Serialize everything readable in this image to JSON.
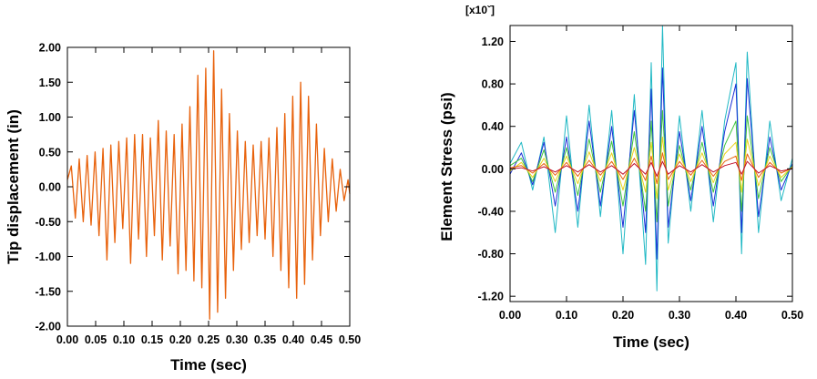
{
  "chart_data": [
    {
      "type": "line",
      "xlabel": "Time (sec)",
      "ylabel": "Tip displacement (in)",
      "xlim": [
        0,
        0.5
      ],
      "ylim": [
        -2.0,
        2.0
      ],
      "xticks": [
        0,
        0.05,
        0.1,
        0.15,
        0.2,
        0.25,
        0.3,
        0.35,
        0.4,
        0.45,
        0.5
      ],
      "xtick_labels": [
        "0.00",
        "0.05",
        "0.10",
        "0.15",
        "0.20",
        "0.25",
        "0.30",
        "0.35",
        "0.40",
        "0.45",
        "0.50"
      ],
      "yticks": [
        -2.0,
        -1.5,
        -1.0,
        -0.5,
        0.0,
        0.5,
        1.0,
        1.5,
        2.0
      ],
      "ytick_labels": [
        "-2.00",
        "-1.50",
        "-1.00",
        "-0.50",
        "0.00",
        "0.50",
        "1.00",
        "1.50",
        "2.00"
      ],
      "grid": false,
      "series": [
        {
          "color": "#e8620c",
          "x": [
            0.0,
            0.007,
            0.014,
            0.021,
            0.028,
            0.035,
            0.042,
            0.049,
            0.056,
            0.063,
            0.07,
            0.077,
            0.084,
            0.091,
            0.098,
            0.105,
            0.112,
            0.119,
            0.126,
            0.133,
            0.14,
            0.147,
            0.154,
            0.161,
            0.168,
            0.175,
            0.182,
            0.189,
            0.196,
            0.203,
            0.21,
            0.217,
            0.224,
            0.231,
            0.238,
            0.245,
            0.252,
            0.259,
            0.266,
            0.273,
            0.28,
            0.287,
            0.294,
            0.301,
            0.308,
            0.315,
            0.322,
            0.329,
            0.336,
            0.343,
            0.35,
            0.357,
            0.364,
            0.371,
            0.378,
            0.385,
            0.392,
            0.399,
            0.406,
            0.413,
            0.42,
            0.427,
            0.434,
            0.441,
            0.448,
            0.455,
            0.462,
            0.469,
            0.476,
            0.483,
            0.49,
            0.497,
            0.5
          ],
          "y": [
            0.1,
            0.3,
            -0.45,
            0.4,
            -0.5,
            0.45,
            -0.55,
            0.5,
            -0.7,
            0.55,
            -1.05,
            0.6,
            -0.8,
            0.65,
            -0.6,
            0.7,
            -1.1,
            0.75,
            -0.75,
            0.75,
            -1.0,
            0.7,
            -0.7,
            0.95,
            -1.05,
            0.8,
            -0.85,
            0.75,
            -1.25,
            0.9,
            -1.2,
            1.15,
            -1.35,
            1.6,
            -1.45,
            1.7,
            -1.9,
            1.95,
            -1.8,
            1.4,
            -1.6,
            1.05,
            -1.2,
            0.8,
            -0.9,
            0.65,
            -0.8,
            0.6,
            -0.7,
            0.65,
            -0.75,
            0.7,
            -1.0,
            0.85,
            -1.2,
            1.05,
            -1.45,
            1.3,
            -1.6,
            1.5,
            -1.4,
            1.3,
            -1.05,
            0.9,
            -0.7,
            0.55,
            -0.5,
            0.4,
            -0.35,
            0.25,
            -0.2,
            0.1,
            -0.1
          ]
        }
      ]
    },
    {
      "type": "line",
      "xlabel": "Time (sec)",
      "ylabel": "Element Stress (psi)",
      "scale_label": "[x10ˇ]",
      "xlim": [
        0,
        0.5
      ],
      "ylim": [
        -1.25,
        1.35
      ],
      "xticks": [
        0,
        0.1,
        0.2,
        0.3,
        0.4,
        0.5
      ],
      "xtick_labels": [
        "0.00",
        "0.10",
        "0.20",
        "0.30",
        "0.40",
        "0.50"
      ],
      "yticks": [
        -1.2,
        -0.8,
        -0.4,
        0.0,
        0.4,
        0.8,
        1.2
      ],
      "ytick_labels": [
        "-1.20",
        "-0.80",
        "-0.40",
        "0.00",
        "0.40",
        "0.80",
        "1.20"
      ],
      "grid": false,
      "series": [
        {
          "color": "#1fb8c4",
          "x": [
            0.0,
            0.02,
            0.04,
            0.06,
            0.08,
            0.1,
            0.12,
            0.14,
            0.16,
            0.18,
            0.2,
            0.22,
            0.24,
            0.25,
            0.26,
            0.27,
            0.28,
            0.3,
            0.32,
            0.34,
            0.36,
            0.38,
            0.4,
            0.41,
            0.42,
            0.44,
            0.46,
            0.48,
            0.5
          ],
          "y": [
            0.05,
            0.25,
            -0.2,
            0.3,
            -0.6,
            0.5,
            -0.55,
            0.6,
            -0.45,
            0.55,
            -0.8,
            0.7,
            -0.9,
            1.0,
            -1.15,
            1.35,
            -0.7,
            0.5,
            -0.4,
            0.55,
            -0.5,
            0.45,
            1.0,
            -0.8,
            1.1,
            -0.6,
            0.45,
            -0.3,
            0.1
          ]
        },
        {
          "color": "#1a2fd6",
          "x": [
            0.0,
            0.02,
            0.04,
            0.06,
            0.08,
            0.1,
            0.12,
            0.14,
            0.16,
            0.18,
            0.2,
            0.22,
            0.24,
            0.25,
            0.26,
            0.27,
            0.28,
            0.3,
            0.32,
            0.34,
            0.36,
            0.38,
            0.4,
            0.41,
            0.42,
            0.44,
            0.46,
            0.48,
            0.5
          ],
          "y": [
            -0.05,
            0.15,
            -0.15,
            0.25,
            -0.35,
            0.3,
            -0.4,
            0.45,
            -0.35,
            0.4,
            -0.55,
            0.55,
            -0.6,
            0.75,
            -0.85,
            0.95,
            -0.55,
            0.35,
            -0.3,
            0.4,
            -0.35,
            0.35,
            0.8,
            -0.6,
            0.85,
            -0.45,
            0.3,
            -0.2,
            0.05
          ]
        },
        {
          "color": "#3cc43c",
          "x": [
            0.0,
            0.02,
            0.04,
            0.06,
            0.08,
            0.1,
            0.12,
            0.14,
            0.16,
            0.18,
            0.2,
            0.22,
            0.24,
            0.25,
            0.26,
            0.27,
            0.28,
            0.3,
            0.32,
            0.34,
            0.36,
            0.38,
            0.4,
            0.41,
            0.42,
            0.44,
            0.46,
            0.48,
            0.5
          ],
          "y": [
            0.03,
            0.1,
            -0.12,
            0.18,
            -0.22,
            0.2,
            -0.25,
            0.28,
            -0.22,
            0.26,
            -0.35,
            0.35,
            -0.4,
            0.45,
            -0.5,
            0.55,
            -0.35,
            0.22,
            -0.2,
            0.25,
            -0.22,
            0.22,
            0.45,
            -0.4,
            0.5,
            -0.28,
            0.2,
            -0.12,
            0.03
          ]
        },
        {
          "color": "#e8d21a",
          "x": [
            0.0,
            0.02,
            0.04,
            0.06,
            0.08,
            0.1,
            0.12,
            0.14,
            0.16,
            0.18,
            0.2,
            0.22,
            0.24,
            0.25,
            0.26,
            0.27,
            0.28,
            0.3,
            0.32,
            0.34,
            0.36,
            0.38,
            0.4,
            0.41,
            0.42,
            0.44,
            0.46,
            0.48,
            0.5
          ],
          "y": [
            -0.02,
            0.06,
            -0.08,
            0.1,
            -0.12,
            0.12,
            -0.14,
            0.16,
            -0.12,
            0.15,
            -0.2,
            0.2,
            -0.22,
            0.25,
            -0.28,
            0.3,
            -0.2,
            0.14,
            -0.12,
            0.15,
            -0.13,
            0.14,
            0.25,
            -0.22,
            0.28,
            -0.16,
            0.12,
            -0.08,
            0.02
          ]
        },
        {
          "color": "#e8620c",
          "x": [
            0.0,
            0.02,
            0.04,
            0.06,
            0.08,
            0.1,
            0.12,
            0.14,
            0.16,
            0.18,
            0.2,
            0.22,
            0.24,
            0.25,
            0.26,
            0.27,
            0.28,
            0.3,
            0.32,
            0.34,
            0.36,
            0.38,
            0.4,
            0.41,
            0.42,
            0.44,
            0.46,
            0.48,
            0.5
          ],
          "y": [
            0.01,
            0.03,
            -0.04,
            0.05,
            -0.06,
            0.06,
            -0.07,
            0.08,
            -0.06,
            0.07,
            -0.1,
            0.1,
            -0.11,
            0.12,
            -0.14,
            0.15,
            -0.1,
            0.07,
            -0.06,
            0.08,
            -0.07,
            0.07,
            0.12,
            -0.11,
            0.14,
            -0.08,
            0.06,
            -0.04,
            0.01
          ]
        },
        {
          "color": "#c0122c",
          "x": [
            0.0,
            0.02,
            0.04,
            0.06,
            0.08,
            0.1,
            0.12,
            0.14,
            0.16,
            0.18,
            0.2,
            0.22,
            0.24,
            0.25,
            0.26,
            0.27,
            0.28,
            0.3,
            0.32,
            0.34,
            0.36,
            0.38,
            0.4,
            0.41,
            0.42,
            0.44,
            0.46,
            0.48,
            0.5
          ],
          "y": [
            0.0,
            0.01,
            -0.02,
            0.02,
            -0.03,
            0.03,
            -0.03,
            0.04,
            -0.03,
            0.03,
            -0.05,
            0.05,
            -0.05,
            0.06,
            -0.07,
            0.07,
            -0.05,
            0.03,
            -0.03,
            0.04,
            -0.03,
            0.03,
            0.06,
            -0.05,
            0.07,
            -0.04,
            0.03,
            -0.02,
            0.0
          ]
        }
      ]
    }
  ]
}
